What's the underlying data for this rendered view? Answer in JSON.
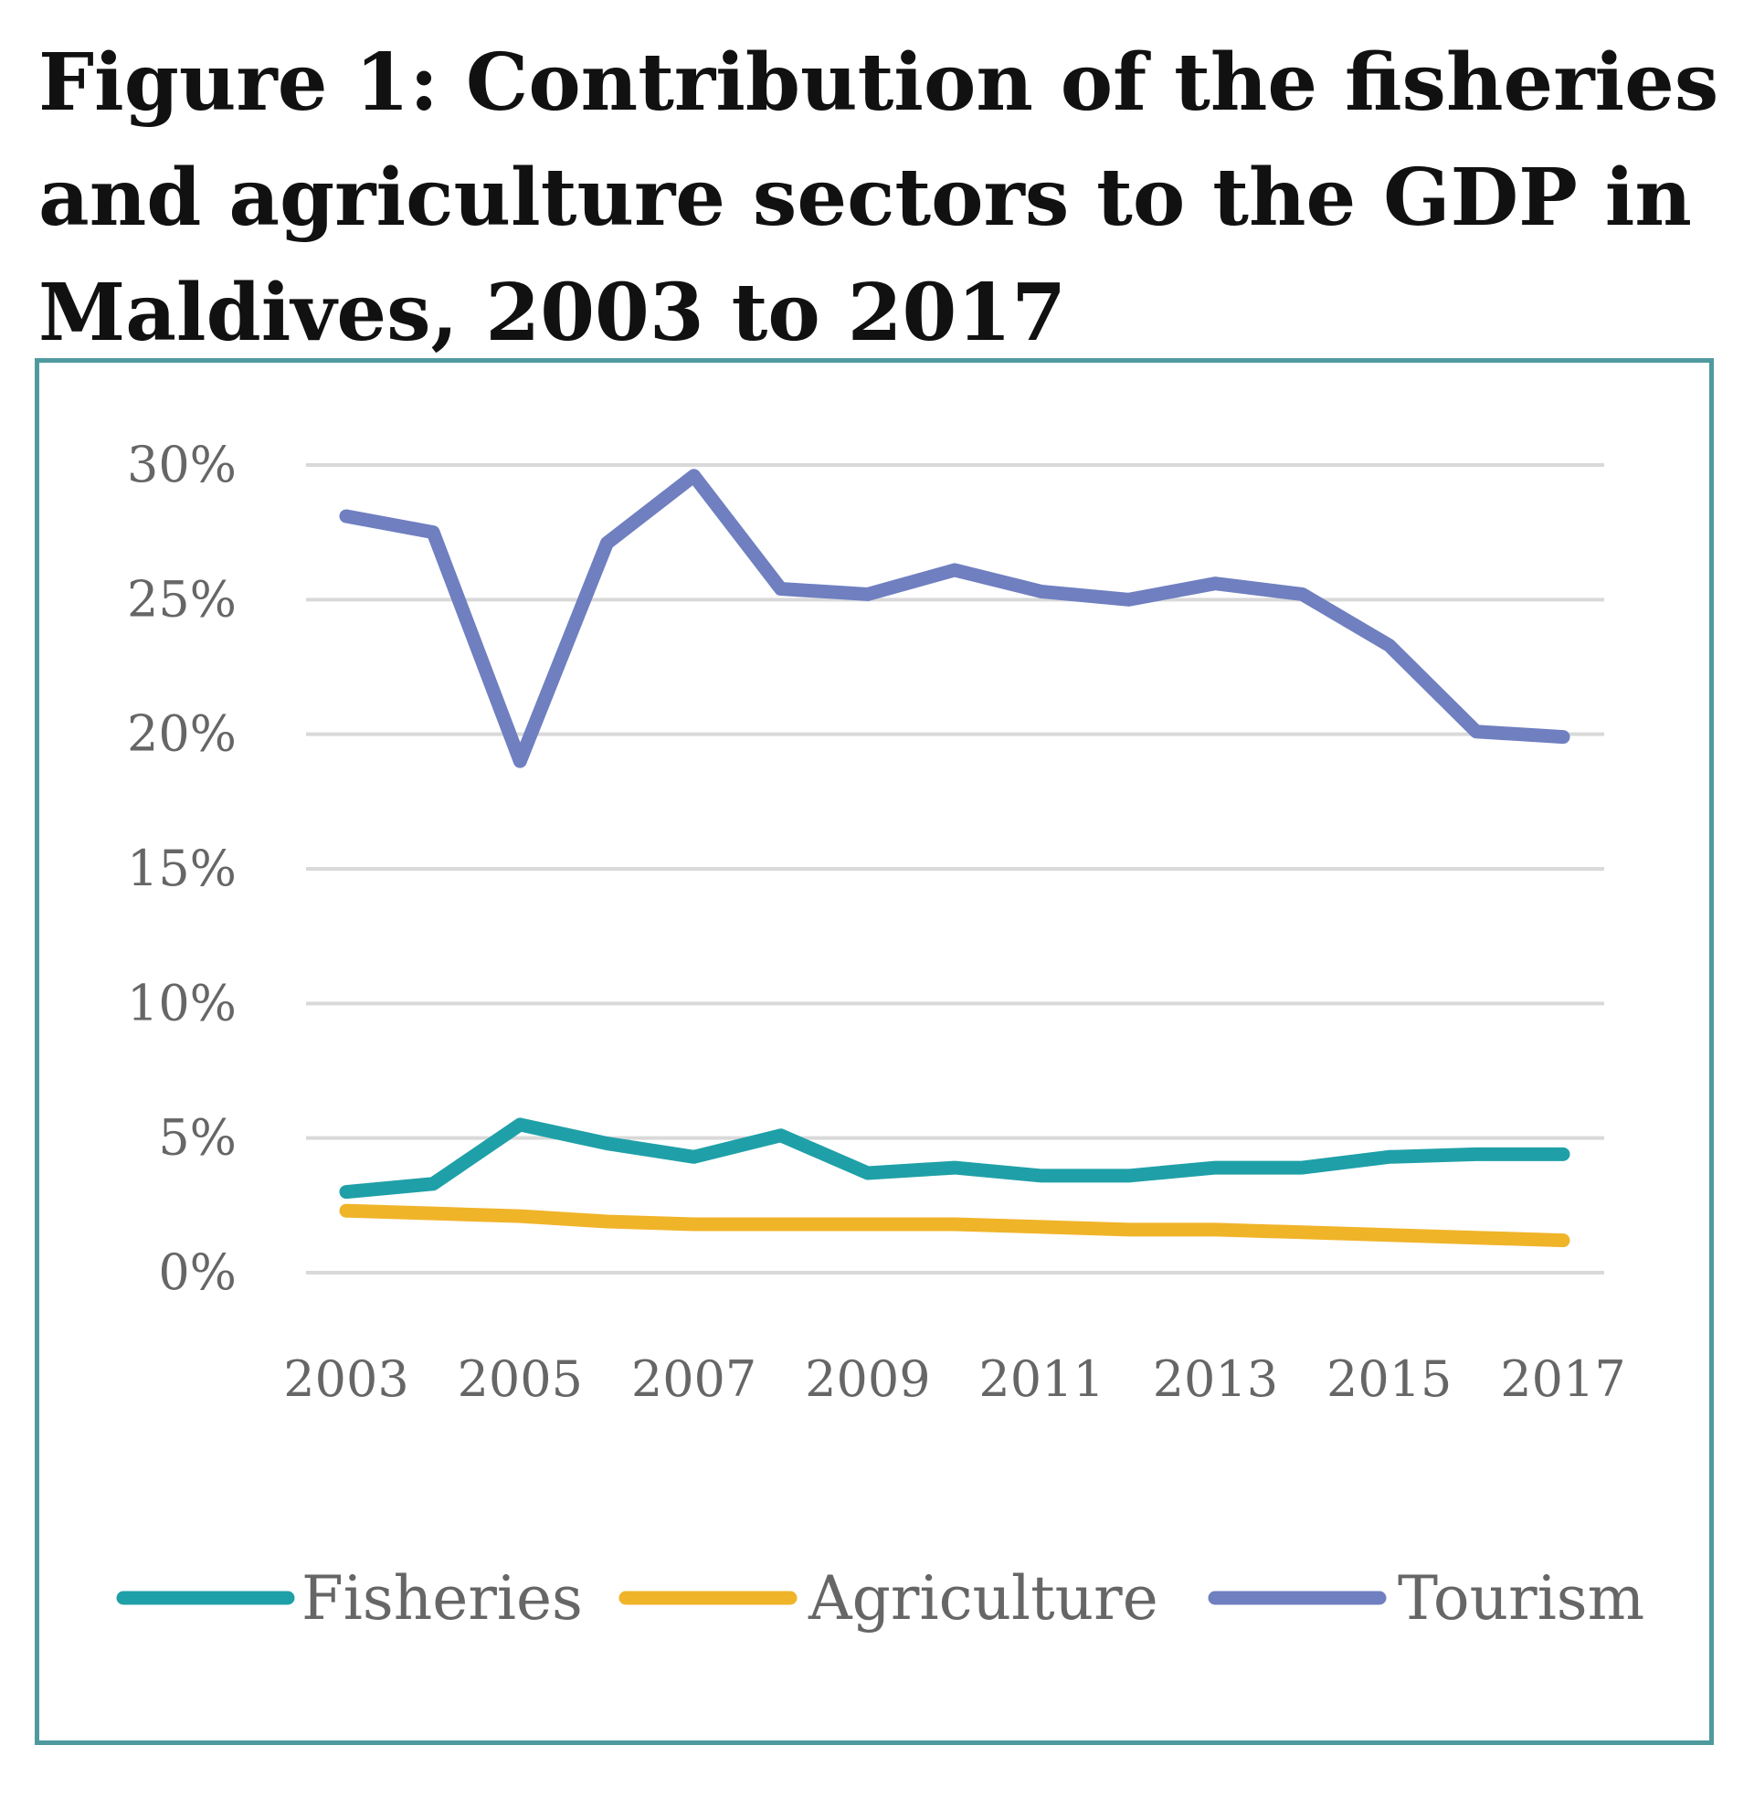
{
  "title": "Figure 1: Contribution of the fisheries and agriculture sectors to the GDP in Maldives, 2003 to 2017",
  "chart_data": {
    "type": "line",
    "title": "Figure 1: Contribution of the fisheries and agriculture sectors to the GDP in Maldives, 2003 to 2017",
    "x": [
      2003,
      2004,
      2005,
      2006,
      2007,
      2008,
      2009,
      2010,
      2011,
      2012,
      2013,
      2014,
      2015,
      2016,
      2017
    ],
    "x_tick_labels": [
      "2003",
      "2005",
      "2007",
      "2009",
      "2011",
      "2013",
      "2015",
      "2017"
    ],
    "y_tick_labels": [
      "0%",
      "5%",
      "10%",
      "15%",
      "20%",
      "25%",
      "30%"
    ],
    "ylim": [
      0,
      30
    ],
    "grid": true,
    "legend_position": "bottom",
    "series": [
      {
        "name": "Fisheries",
        "color": "#1fa0a8",
        "values": [
          3.0,
          3.3,
          5.5,
          4.8,
          4.3,
          5.1,
          3.7,
          3.9,
          3.6,
          3.6,
          3.9,
          3.9,
          4.3,
          4.4,
          4.4
        ]
      },
      {
        "name": "Agriculture",
        "color": "#f0b429",
        "values": [
          2.3,
          2.2,
          2.1,
          1.9,
          1.8,
          1.8,
          1.8,
          1.8,
          1.7,
          1.6,
          1.6,
          1.5,
          1.4,
          1.3,
          1.2
        ]
      },
      {
        "name": "Tourism",
        "color": "#6f7fc0",
        "values": [
          28.1,
          27.5,
          19.0,
          27.1,
          29.6,
          25.4,
          25.2,
          26.1,
          25.3,
          25.0,
          25.6,
          25.2,
          23.3,
          20.1,
          19.9
        ]
      }
    ]
  }
}
